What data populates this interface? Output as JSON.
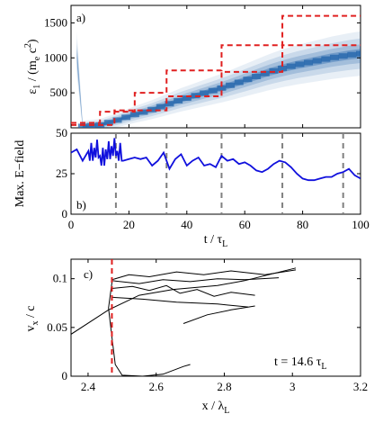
{
  "chart_data": [
    {
      "panel": "a)",
      "type": "heatmap",
      "ylabel_main": "ε",
      "ylabel_sub": "1",
      "ylabel_rest": " / (m",
      "ylabel_sub2": "e",
      "ylabel_rest2": " c",
      "ylabel_sup": "2",
      "ylabel_close": ")",
      "xlim": [
        0,
        100
      ],
      "ylim": [
        0,
        1750
      ],
      "yticks": [
        "500",
        "1000",
        "1500"
      ],
      "ytick_values": [
        500,
        1000,
        1500
      ],
      "heatmap_color": "#1a5fa8",
      "heatmap_ridge": [
        [
          4,
          20
        ],
        [
          10,
          40
        ],
        [
          16,
          110
        ],
        [
          22,
          190
        ],
        [
          28,
          260
        ],
        [
          33,
          330
        ],
        [
          38,
          400
        ],
        [
          43,
          460
        ],
        [
          48,
          520
        ],
        [
          53,
          580
        ],
        [
          58,
          650
        ],
        [
          63,
          720
        ],
        [
          68,
          790
        ],
        [
          73,
          850
        ],
        [
          78,
          900
        ],
        [
          84,
          950
        ],
        [
          90,
          1000
        ],
        [
          96,
          1040
        ],
        [
          100,
          1060
        ]
      ],
      "step_series": {
        "color": "#e02020",
        "style": "dashed",
        "upper": {
          "x": [
            0,
            10,
            10,
            22,
            22,
            33,
            33,
            52,
            52,
            73,
            73,
            94,
            94,
            100
          ],
          "y": [
            70,
            70,
            230,
            230,
            500,
            500,
            820,
            820,
            1180,
            1180,
            1600,
            1600,
            1600,
            1600
          ]
        },
        "lower": {
          "x": [
            0,
            15,
            15,
            33,
            33,
            52,
            52,
            73,
            73,
            94,
            94,
            100
          ],
          "y": [
            40,
            40,
            250,
            250,
            450,
            450,
            800,
            800,
            1180,
            1180,
            1180,
            1180
          ]
        }
      }
    },
    {
      "panel": "b)",
      "type": "line",
      "ylabel": "Max. E−field",
      "xlabel_main": "t / τ",
      "xlabel_sub": "L",
      "xlim": [
        0,
        100
      ],
      "ylim": [
        0,
        50
      ],
      "xticks": [
        "0",
        "20",
        "40",
        "60",
        "80",
        "100"
      ],
      "xtick_values": [
        0,
        20,
        40,
        60,
        80,
        100
      ],
      "yticks": [
        "0",
        "25",
        "50"
      ],
      "ytick_values": [
        0,
        25,
        50
      ],
      "series_color": "#1010dd",
      "vlines": [
        15.5,
        33,
        52,
        73,
        94
      ],
      "vline_color": "#808080",
      "x": [
        0,
        2,
        4,
        6,
        8,
        10,
        12,
        14,
        16,
        18,
        20,
        22,
        24,
        26,
        28,
        30,
        32,
        34,
        36,
        38,
        40,
        42,
        44,
        46,
        48,
        50,
        52,
        54,
        56,
        58,
        60,
        62,
        64,
        66,
        68,
        70,
        72,
        74,
        76,
        78,
        80,
        82,
        84,
        86,
        88,
        90,
        92,
        94,
        96,
        98,
        100
      ],
      "y": [
        38,
        40,
        33,
        39,
        41,
        36,
        40,
        42,
        39,
        33,
        34,
        35,
        34,
        35,
        30,
        33,
        38,
        28,
        34,
        37,
        30,
        33,
        35,
        30,
        31,
        29,
        36,
        33,
        34,
        31,
        32,
        30,
        27,
        26,
        28,
        31,
        33,
        32,
        29,
        25,
        22,
        21,
        21,
        22,
        23,
        23,
        25,
        26,
        28,
        24,
        22
      ]
    },
    {
      "panel": "c)",
      "type": "line",
      "ylabel_main": "v",
      "ylabel_sub": "x",
      "ylabel_rest": " / c",
      "xlabel_main": "x / λ",
      "xlabel_sub": "L",
      "xlim": [
        2.35,
        3.2
      ],
      "ylim": [
        0,
        0.12
      ],
      "xticks": [
        "2.4",
        "2.6",
        "2.8",
        "3",
        "3.2"
      ],
      "xtick_values": [
        2.4,
        2.6,
        2.8,
        3.0,
        3.2
      ],
      "yticks": [
        "0",
        "0.05",
        "0.1"
      ],
      "ytick_values": [
        0,
        0.05,
        0.1
      ],
      "annotation": "t = 14.6 τ",
      "annotation_sub": "L",
      "vline_x": 2.47,
      "vline_color": "#e02020",
      "trajectory_color": "#000000"
    }
  ]
}
